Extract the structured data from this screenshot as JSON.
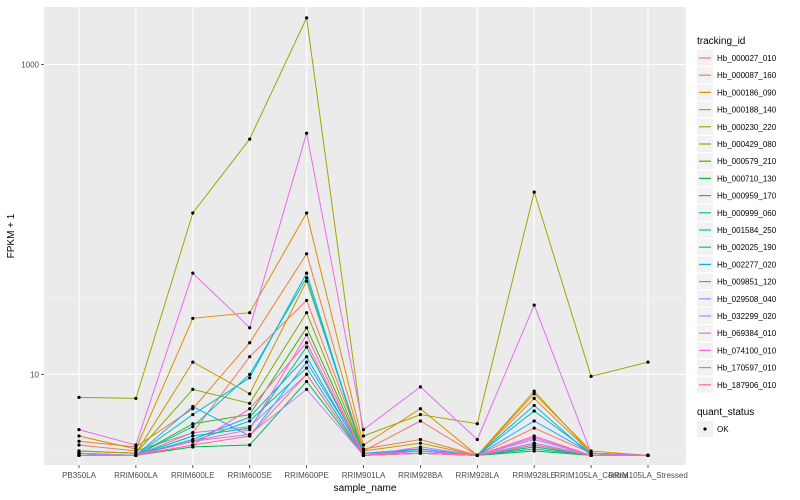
{
  "chart_data": {
    "type": "line",
    "title": "",
    "xlabel": "sample_name",
    "ylabel": "FPKM + 1",
    "y_scale": "log10",
    "ylim": [
      2.6,
      2350
    ],
    "y_ticks": [
      10,
      1000
    ],
    "grid": true,
    "legend_position": "right",
    "legend_title": "tracking_id",
    "legend2_title": "quant_status",
    "legend2_items": [
      "OK"
    ],
    "categories": [
      "PB350LA",
      "RRIM600LA",
      "RRIM600LE",
      "RRIM600SE",
      "RRIM600PE",
      "RRIM901LA",
      "RRIM928BA",
      "RRIM928LA",
      "RRIM928LE",
      "RRIM105LA_Control",
      "RRIM105LA_Stressed"
    ],
    "series": [
      {
        "name": "Hb_000027_010",
        "color": "#F8766D",
        "values": [
          3.5,
          3.2,
          4.2,
          13.0,
          30.0,
          3.2,
          5.0,
          3.0,
          4.5,
          3.1,
          3.0
        ]
      },
      {
        "name": "Hb_000087_160",
        "color": "#EA8331",
        "values": [
          3.7,
          3.4,
          6.0,
          16.0,
          60.0,
          3.3,
          3.8,
          3.0,
          7.0,
          3.1,
          3.0
        ]
      },
      {
        "name": "Hb_000186_090",
        "color": "#D89000",
        "values": [
          4.0,
          3.3,
          23.0,
          25.0,
          110.0,
          3.5,
          6.0,
          3.0,
          7.5,
          3.2,
          3.0
        ]
      },
      {
        "name": "Hb_000188_140",
        "color": "#C09B00",
        "values": [
          3.2,
          3.1,
          12.0,
          7.5,
          40.0,
          3.2,
          3.6,
          3.0,
          7.8,
          3.1,
          3.0
        ]
      },
      {
        "name": "Hb_000230_220",
        "color": "#A3A500",
        "values": [
          7.1,
          7.0,
          110.0,
          330.0,
          2000.0,
          4.0,
          5.5,
          4.8,
          150.0,
          9.7,
          12.0
        ]
      },
      {
        "name": "Hb_000429_080",
        "color": "#7CAE00",
        "values": [
          3.2,
          3.1,
          8.0,
          6.5,
          25.0,
          3.1,
          3.3,
          3.0,
          3.5,
          3.0,
          3.0
        ]
      },
      {
        "name": "Hb_000579_210",
        "color": "#39B600",
        "values": [
          3.1,
          3.0,
          4.8,
          5.5,
          20.0,
          3.1,
          3.2,
          3.0,
          3.4,
          3.0,
          3.0
        ]
      },
      {
        "name": "Hb_000710_130",
        "color": "#00BB4E",
        "values": [
          3.0,
          3.0,
          3.4,
          3.5,
          9.0,
          3.0,
          3.1,
          3.0,
          3.2,
          3.0,
          3.0
        ]
      },
      {
        "name": "Hb_000959_170",
        "color": "#00BF7D",
        "values": [
          3.1,
          3.0,
          4.0,
          4.5,
          15.0,
          3.0,
          3.2,
          3.0,
          3.3,
          3.0,
          3.0
        ]
      },
      {
        "name": "Hb_000999_060",
        "color": "#00C1A3",
        "values": [
          3.0,
          3.0,
          3.7,
          5.0,
          11.0,
          3.0,
          3.1,
          3.0,
          3.4,
          3.0,
          3.0
        ]
      },
      {
        "name": "Hb_001584_250",
        "color": "#00BFC4",
        "values": [
          3.1,
          3.0,
          5.5,
          9.5,
          45.0,
          3.0,
          3.3,
          3.0,
          5.8,
          3.1,
          3.0
        ]
      },
      {
        "name": "Hb_002025_190",
        "color": "#00BAE0",
        "values": [
          3.0,
          3.0,
          4.6,
          10.0,
          42.0,
          3.0,
          3.2,
          3.0,
          6.3,
          3.0,
          3.0
        ]
      },
      {
        "name": "Hb_002277_020",
        "color": "#00B0F6",
        "values": [
          3.0,
          3.0,
          3.8,
          5.3,
          13.0,
          3.0,
          3.1,
          3.0,
          3.6,
          3.0,
          3.0
        ]
      },
      {
        "name": "Hb_009851_120",
        "color": "#35A2FF",
        "values": [
          3.1,
          3.0,
          6.2,
          4.0,
          12.0,
          3.1,
          3.3,
          3.0,
          5.0,
          3.1,
          3.0
        ]
      },
      {
        "name": "Hb_029508_040",
        "color": "#9590FF",
        "values": [
          3.0,
          3.0,
          4.2,
          4.6,
          10.0,
          3.0,
          3.2,
          3.0,
          3.8,
          3.0,
          3.0
        ]
      },
      {
        "name": "Hb_032299_020",
        "color": "#C77CFF",
        "values": [
          3.1,
          3.0,
          3.7,
          4.1,
          8.0,
          3.0,
          3.4,
          3.0,
          3.6,
          3.0,
          3.0
        ]
      },
      {
        "name": "Hb_069384_010",
        "color": "#E76BF3",
        "values": [
          4.4,
          3.5,
          45.0,
          20.0,
          360.0,
          4.4,
          8.3,
          3.8,
          28.0,
          3.1,
          3.0
        ]
      },
      {
        "name": "Hb_074100_010",
        "color": "#FA62DB",
        "values": [
          3.0,
          3.0,
          3.7,
          4.4,
          18.0,
          3.0,
          3.2,
          3.0,
          3.9,
          3.0,
          3.0
        ]
      },
      {
        "name": "Hb_170597_010",
        "color": "#FF62BC",
        "values": [
          3.0,
          3.0,
          3.5,
          6.0,
          16.0,
          3.0,
          3.1,
          3.0,
          4.0,
          3.0,
          3.0
        ]
      },
      {
        "name": "Hb_187906_010",
        "color": "#FF6C91",
        "values": [
          3.0,
          3.0,
          3.5,
          4.0,
          10.0,
          3.0,
          3.1,
          3.0,
          3.5,
          3.0,
          3.0
        ]
      }
    ]
  }
}
